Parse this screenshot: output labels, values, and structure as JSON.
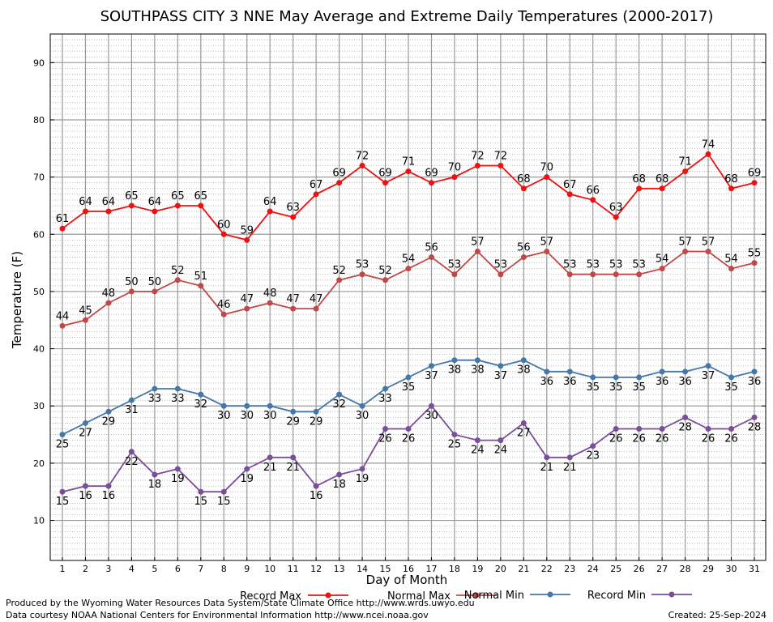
{
  "chart_data": {
    "type": "line",
    "title": "SOUTHPASS CITY 3 NNE May Average and Extreme Daily Temperatures (2000-2017)",
    "xlabel": "Day of Month",
    "ylabel": "Temperature (F)",
    "x": [
      1,
      2,
      3,
      4,
      5,
      6,
      7,
      8,
      9,
      10,
      11,
      12,
      13,
      14,
      15,
      16,
      17,
      18,
      19,
      20,
      21,
      22,
      23,
      24,
      25,
      26,
      27,
      28,
      29,
      30,
      31
    ],
    "xlim": [
      1,
      31
    ],
    "ylim": [
      3,
      95
    ],
    "yticks": [
      10,
      20,
      30,
      40,
      50,
      60,
      70,
      80,
      90
    ],
    "grid": true,
    "legend_position": "bottom",
    "series": [
      {
        "name": "Record Max",
        "color": "#ee1111",
        "label_position": "above",
        "values": [
          61,
          64,
          64,
          65,
          64,
          65,
          65,
          60,
          59,
          64,
          63,
          67,
          69,
          72,
          69,
          71,
          69,
          70,
          72,
          72,
          68,
          70,
          67,
          66,
          63,
          68,
          68,
          71,
          74,
          68,
          69
        ]
      },
      {
        "name": "Normal Max",
        "color": "#c04848",
        "label_position": "above",
        "values": [
          44,
          45,
          48,
          50,
          50,
          52,
          51,
          46,
          47,
          48,
          47,
          47,
          52,
          53,
          52,
          54,
          56,
          53,
          57,
          53,
          56,
          57,
          53,
          53,
          53,
          53,
          54,
          57,
          57,
          54,
          55
        ]
      },
      {
        "name": "Normal Min",
        "color": "#4477aa",
        "label_position": "below",
        "values": [
          25,
          27,
          29,
          31,
          33,
          33,
          32,
          30,
          30,
          30,
          29,
          29,
          32,
          30,
          33,
          35,
          37,
          38,
          38,
          37,
          38,
          36,
          36,
          35,
          35,
          35,
          36,
          36,
          37,
          35,
          36
        ]
      },
      {
        "name": "Record Min",
        "color": "#7a4f9a",
        "label_position": "below",
        "values": [
          15,
          16,
          16,
          22,
          18,
          19,
          15,
          15,
          19,
          21,
          21,
          16,
          18,
          19,
          26,
          26,
          30,
          25,
          24,
          24,
          27,
          21,
          21,
          23,
          26,
          26,
          26,
          28,
          26,
          26,
          28
        ]
      }
    ]
  },
  "footer": {
    "line1": "Produced by the Wyoming Water Resources Data System/State Climate Office http://www.wrds.uwyo.edu",
    "line2": "Data courtesy NOAA National Centers for Environmental Information http://www.ncei.noaa.gov",
    "created": "Created:  25-Sep-2024"
  }
}
